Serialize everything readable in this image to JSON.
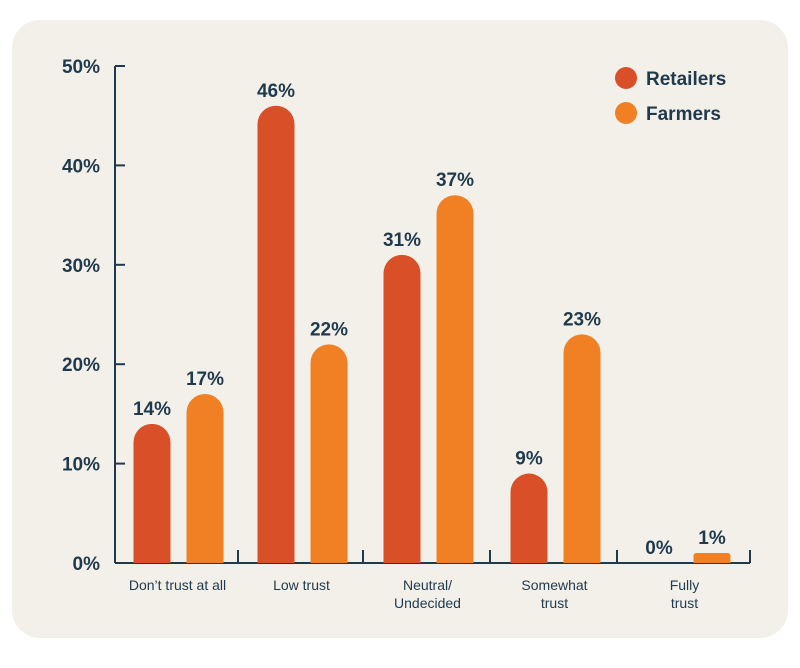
{
  "chart_data": {
    "type": "bar",
    "categories": [
      [
        "Don’t trust at all"
      ],
      [
        "Low trust"
      ],
      [
        "Neutral/",
        "Undecided"
      ],
      [
        "Somewhat",
        "trust"
      ],
      [
        "Fully",
        "trust"
      ]
    ],
    "series": [
      {
        "name": "Retailers",
        "values": [
          14,
          46,
          31,
          9,
          0
        ],
        "labels": [
          "14%",
          "46%",
          "31%",
          "9%",
          "0%"
        ],
        "color": "#d94f27"
      },
      {
        "name": "Farmers",
        "values": [
          17,
          22,
          37,
          23,
          1
        ],
        "labels": [
          "17%",
          "22%",
          "37%",
          "23%",
          "1%"
        ],
        "color": "#f08023"
      }
    ],
    "yticks": [
      "0%",
      "10%",
      "20%",
      "30%",
      "40%",
      "50%"
    ],
    "ylim": [
      0,
      50
    ],
    "legend_position": "top-right",
    "axis_color": "#1f3a4d",
    "background_color": "#f3efe9"
  }
}
